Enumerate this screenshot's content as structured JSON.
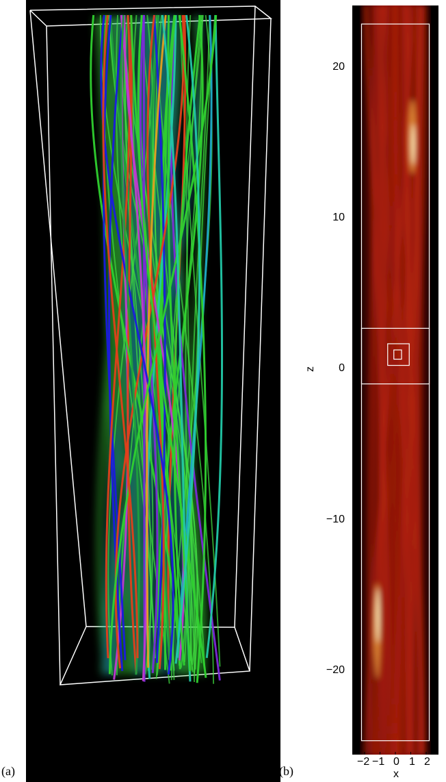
{
  "figure": {
    "panel_a_label": "(a)",
    "panel_b_label": "(b)"
  },
  "panel_a": {
    "kind": "3D field-line rendering",
    "box_color": "#ffffff",
    "line_colors": [
      "#2fd12f",
      "#1ea8c8",
      "#1a1ae0",
      "#c03ad0",
      "#e0401a",
      "#e6a020",
      "#22c8a8",
      "#7a2ad8",
      "#1e9e3e"
    ]
  },
  "chart_data": {
    "type": "heatmap",
    "xlabel": "x",
    "ylabel": "z",
    "x_ticks": [
      "−2",
      "−1",
      "0",
      "1",
      "2"
    ],
    "y_ticks": [
      "20",
      "10",
      "0",
      "−10",
      "−20"
    ],
    "x_tick_values": [
      -2,
      -1,
      0,
      1,
      2
    ],
    "y_tick_values": [
      20,
      10,
      0,
      -10,
      -20
    ],
    "xlim": [
      -2.8,
      2.8
    ],
    "ylim": [
      -24,
      24.5
    ],
    "colormap": "black-red-yellow-white",
    "overlay_boxes": [
      {
        "x0": -2.2,
        "x1": 2.2,
        "z0": -23.1,
        "z1": 23.3
      },
      {
        "x0": -2.2,
        "x1": 2.2,
        "z0": 0.0,
        "z1": 3.6
      },
      {
        "x0": -0.5,
        "x1": 0.9,
        "z0": 1.2,
        "z1": 2.6
      },
      {
        "x0": -0.1,
        "x1": 0.4,
        "z0": 1.6,
        "z1": 2.2
      }
    ]
  }
}
